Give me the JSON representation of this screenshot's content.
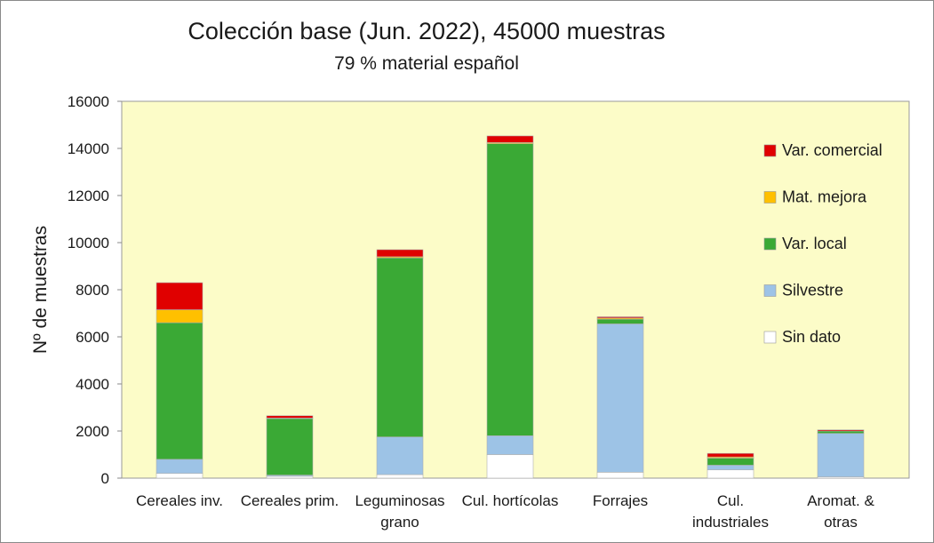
{
  "chart_data": {
    "type": "bar",
    "stacked": true,
    "title": "Colección base (Jun. 2022),  45000 muestras",
    "subtitle": "79 % material español",
    "ylabel": "Nº de muestras",
    "xlabel": "",
    "ylim": [
      0,
      16000
    ],
    "yticks": [
      "0",
      "2000",
      "4000",
      "6000",
      "8000",
      "10000",
      "12000",
      "14000",
      "16000"
    ],
    "categories": [
      [
        "Cereales inv."
      ],
      [
        "Cereales prim."
      ],
      [
        "Leguminosas",
        "grano"
      ],
      [
        "Cul. hortícolas"
      ],
      [
        "Forrajes"
      ],
      [
        "Cul.",
        "industriales"
      ],
      [
        "Aromat. &",
        "otras"
      ]
    ],
    "plot_background": "#fcfcc8",
    "grid": false,
    "legend_position": "right",
    "series": [
      {
        "name": "Sin dato",
        "color": "#ffffff",
        "values": [
          200,
          80,
          150,
          1000,
          250,
          350,
          50
        ]
      },
      {
        "name": "Silvestre",
        "color": "#9dc3e6",
        "values": [
          600,
          50,
          1600,
          800,
          6300,
          200,
          1850
        ]
      },
      {
        "name": "Var. local",
        "color": "#3aa935",
        "values": [
          5800,
          2400,
          7600,
          12400,
          200,
          300,
          100
        ]
      },
      {
        "name": "Mat. mejora",
        "color": "#ffc000",
        "values": [
          550,
          20,
          50,
          50,
          50,
          50,
          0
        ]
      },
      {
        "name": "Var. comercial",
        "color": "#e00000",
        "values": [
          1150,
          100,
          300,
          280,
          50,
          150,
          50
        ]
      }
    ]
  }
}
